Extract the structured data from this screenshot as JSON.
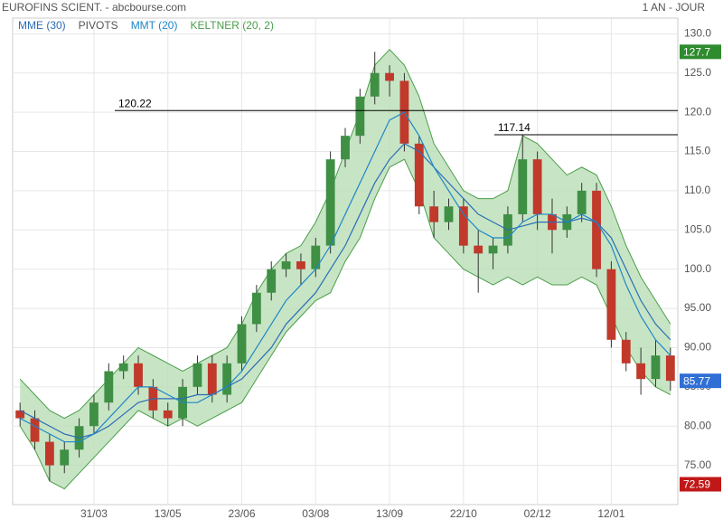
{
  "header": {
    "title": "EUROFINS SCIENT. - abcbourse.com",
    "period": "1 AN - JOUR"
  },
  "chart_data": {
    "type": "candlestick",
    "legend": [
      "MME (30)",
      "PIVOTS",
      "MMT (20)",
      "KELTNER (20, 2)"
    ],
    "categories": [
      null,
      null,
      null,
      null,
      null,
      "31/03",
      null,
      null,
      null,
      null,
      "13/05",
      null,
      null,
      null,
      null,
      "23/06",
      null,
      null,
      null,
      null,
      "03/08",
      null,
      null,
      null,
      null,
      "13/09",
      null,
      null,
      null,
      null,
      "22/10",
      null,
      null,
      null,
      null,
      "02/12",
      null,
      null,
      null,
      null,
      "12/01",
      null,
      null,
      null,
      null
    ],
    "open": [
      82,
      81,
      78,
      75,
      77,
      80,
      83,
      87,
      88,
      85,
      82,
      81,
      85,
      88,
      84,
      88,
      93,
      97,
      100,
      101,
      100,
      103,
      114,
      117,
      122,
      125,
      124,
      116,
      108,
      106,
      108,
      103,
      102,
      103,
      107,
      114,
      107,
      105,
      107,
      110,
      100,
      91,
      88,
      86,
      89
    ],
    "high": [
      83,
      82,
      79,
      78,
      81,
      84,
      88,
      89,
      89,
      86,
      83,
      86,
      89,
      89,
      89,
      94,
      98,
      101,
      102,
      102,
      104,
      115,
      118,
      123,
      127.7,
      126,
      125,
      117,
      110,
      109,
      109,
      105,
      104,
      108,
      117.14,
      115,
      109,
      108,
      111,
      111,
      101,
      92,
      90,
      91,
      90
    ],
    "low": [
      80,
      77,
      73,
      74,
      76,
      79,
      82,
      86,
      84,
      81,
      80,
      80,
      84,
      83,
      83,
      87,
      92,
      96,
      99,
      98,
      99,
      102,
      113,
      116,
      121,
      122,
      115,
      107,
      104,
      105,
      102,
      97,
      100,
      102,
      106,
      105,
      102,
      104,
      106,
      99,
      90,
      87,
      84,
      85,
      84.5
    ],
    "close": [
      81,
      78,
      75,
      77,
      80,
      83,
      87,
      88,
      85,
      82,
      81,
      85,
      88,
      84,
      88,
      93,
      97,
      100,
      101,
      100,
      103,
      114,
      117,
      122,
      125,
      124,
      116,
      108,
      106,
      108,
      103,
      102,
      103,
      107,
      114,
      107,
      105,
      107,
      110,
      100,
      91,
      88,
      86,
      89,
      85.77
    ],
    "up_color": "#3f8f45",
    "down_color": "#c0392b",
    "series": [
      {
        "name": "MME (30)",
        "color": "#2a6db5",
        "values": [
          82,
          81,
          80,
          79,
          78.5,
          79,
          80,
          81.5,
          83,
          83.5,
          83.5,
          83.5,
          84,
          84,
          85,
          86,
          88,
          90,
          93,
          95,
          97,
          100,
          103,
          107,
          111,
          114,
          116,
          115,
          113,
          111,
          109,
          107,
          106,
          105,
          105.5,
          106,
          106,
          106,
          106.5,
          106,
          104,
          100,
          96,
          93,
          91
        ]
      },
      {
        "name": "MMT (20)",
        "color": "#1f86c8",
        "values": [
          81,
          80,
          79,
          78,
          78,
          79,
          81,
          83,
          85,
          85,
          84,
          83,
          83,
          84,
          85,
          87,
          90,
          93,
          96,
          98,
          100,
          103,
          107,
          111,
          115,
          119,
          120,
          117,
          113,
          110,
          107,
          105,
          104,
          104,
          106,
          107,
          107,
          106,
          107,
          106,
          103,
          98,
          94,
          91,
          89
        ]
      }
    ],
    "keltner": {
      "name": "KELTNER (20, 2)",
      "color": "#4a9e4a",
      "fill": "#b9deb5",
      "upper": [
        86,
        84,
        82,
        81,
        82,
        84,
        86,
        88,
        90,
        89,
        88,
        87,
        88,
        89,
        90,
        93,
        97,
        100,
        102,
        103,
        106,
        110,
        115,
        120,
        126,
        128,
        126,
        122,
        116,
        113,
        110,
        109,
        109,
        110,
        117,
        116,
        114,
        112,
        113,
        112,
        108,
        103,
        99,
        96,
        93
      ],
      "lower": [
        80,
        77,
        73,
        72,
        74,
        76,
        78,
        80,
        82,
        81,
        80,
        81,
        80,
        81,
        82,
        83,
        86,
        89,
        92,
        94,
        96,
        97,
        101,
        104,
        109,
        113,
        114,
        110,
        104,
        102,
        100,
        99,
        98,
        99,
        98,
        99,
        98,
        98,
        99,
        98,
        94,
        90,
        87,
        85,
        84
      ]
    },
    "pivots": [
      120.22,
      117.14
    ],
    "badges": [
      {
        "value": 127.7,
        "color": "#2e8b2e"
      },
      {
        "value": 85.77,
        "color": "#2f6fd6"
      },
      {
        "value": 72.59,
        "color": "#c01818"
      }
    ],
    "ylim": [
      70,
      132
    ],
    "yticks": [
      {
        "value": 75,
        "label": "75.00"
      },
      {
        "value": 80,
        "label": "80.00"
      },
      {
        "value": 85,
        "label": "85.00"
      },
      {
        "value": 90,
        "label": "90.00"
      },
      {
        "value": 95,
        "label": "95.00"
      },
      {
        "value": 100,
        "label": "100.0"
      },
      {
        "value": 105,
        "label": "105.0"
      },
      {
        "value": 110,
        "label": "110.0"
      },
      {
        "value": 115,
        "label": "115.0"
      },
      {
        "value": 120,
        "label": "120.0"
      },
      {
        "value": 125,
        "label": "125.0"
      },
      {
        "value": 130,
        "label": "130.0"
      }
    ],
    "grid": true
  }
}
